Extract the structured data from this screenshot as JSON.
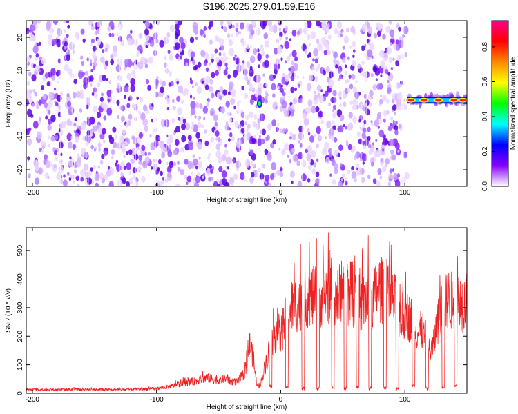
{
  "figure_title": "S196.2025.279.01.59.E16",
  "chart_data": [
    {
      "type": "heatmap",
      "title": "S196.2025.279.01.59.E16",
      "xlabel": "Height of straight line (km)",
      "ylabel": "Frequency (Hz)",
      "xlim": [
        -205,
        150
      ],
      "ylim": [
        -25,
        25
      ],
      "xticks": [
        -200,
        -100,
        0,
        100
      ],
      "yticks": [
        -20,
        -10,
        0,
        10,
        20
      ],
      "grid": false,
      "colorbar": {
        "label": "Normalized spectral amplitude",
        "range": [
          0.0,
          0.95
        ],
        "ticks": [
          "0.0",
          "0.2",
          "0.4",
          "0.6",
          "0.8"
        ],
        "colors": [
          "#ffffff",
          "#8800ff",
          "#0000ff",
          "#00ffff",
          "#00ff00",
          "#ffff00",
          "#ff8800",
          "#ff0000",
          "#ff0088"
        ]
      },
      "features": [
        {
          "desc": "broadband noise",
          "x_range": [
            -205,
            102
          ],
          "y_range": [
            -25,
            25
          ],
          "typical_amplitude": 0.1
        },
        {
          "desc": "isolated peak",
          "x": -17,
          "y": 0,
          "amplitude": 0.55
        },
        {
          "desc": "narrowband tone near 0 Hz",
          "x_range": [
            102,
            150
          ],
          "y_range": [
            -1,
            3
          ],
          "peak_amplitude": 0.95
        }
      ]
    },
    {
      "type": "line",
      "xlabel": "Height of straight line (km)",
      "ylabel": "SNR (10 * v/v)",
      "xlim": [
        -205,
        150
      ],
      "ylim": [
        0,
        580
      ],
      "xticks": [
        -200,
        -100,
        0,
        100
      ],
      "yticks": [
        0,
        100,
        200,
        300,
        400,
        500
      ],
      "grid": false,
      "color": "#ee2222",
      "x": [
        -205,
        -190,
        -175,
        -160,
        -145,
        -130,
        -115,
        -100,
        -90,
        -80,
        -70,
        -60,
        -55,
        -50,
        -45,
        -40,
        -35,
        -30,
        -27,
        -25,
        -22,
        -20,
        -18,
        -15,
        -12,
        -10,
        -8,
        -5,
        -3,
        0,
        3,
        6,
        9,
        12,
        15,
        18,
        21,
        24,
        27,
        30,
        33,
        36,
        39,
        42,
        45,
        48,
        51,
        54,
        57,
        60,
        63,
        66,
        69,
        72,
        75,
        78,
        81,
        84,
        87,
        90,
        93,
        96,
        99,
        102,
        105,
        108,
        111,
        114,
        117,
        120,
        123,
        126,
        129,
        132,
        135,
        138,
        141,
        144,
        147,
        150
      ],
      "values": [
        15,
        16,
        15,
        17,
        16,
        15,
        17,
        20,
        28,
        40,
        50,
        65,
        60,
        55,
        62,
        50,
        48,
        80,
        120,
        210,
        150,
        60,
        20,
        60,
        130,
        160,
        220,
        250,
        270,
        240,
        300,
        330,
        370,
        380,
        390,
        400,
        410,
        420,
        400,
        430,
        410,
        420,
        440,
        430,
        400,
        420,
        410,
        430,
        420,
        400,
        410,
        380,
        400,
        420,
        390,
        450,
        440,
        420,
        400,
        390,
        380,
        350,
        320,
        330,
        310,
        300,
        250,
        270,
        230,
        180,
        200,
        290,
        350,
        380,
        400,
        390,
        420,
        400,
        380,
        390
      ],
      "dropouts": [
        {
          "x": -8,
          "value": 18
        },
        {
          "x": 5,
          "value": 15
        },
        {
          "x": 18,
          "value": 10
        },
        {
          "x": 30,
          "value": 10
        },
        {
          "x": 42,
          "value": 12
        },
        {
          "x": 52,
          "value": 10
        },
        {
          "x": 62,
          "value": 15
        },
        {
          "x": 72,
          "value": 10
        },
        {
          "x": 84,
          "value": 15
        },
        {
          "x": 94,
          "value": 10
        },
        {
          "x": 107,
          "value": 20
        },
        {
          "x": 118,
          "value": 10
        },
        {
          "x": 131,
          "value": 15
        },
        {
          "x": 141,
          "value": 20
        }
      ]
    }
  ]
}
